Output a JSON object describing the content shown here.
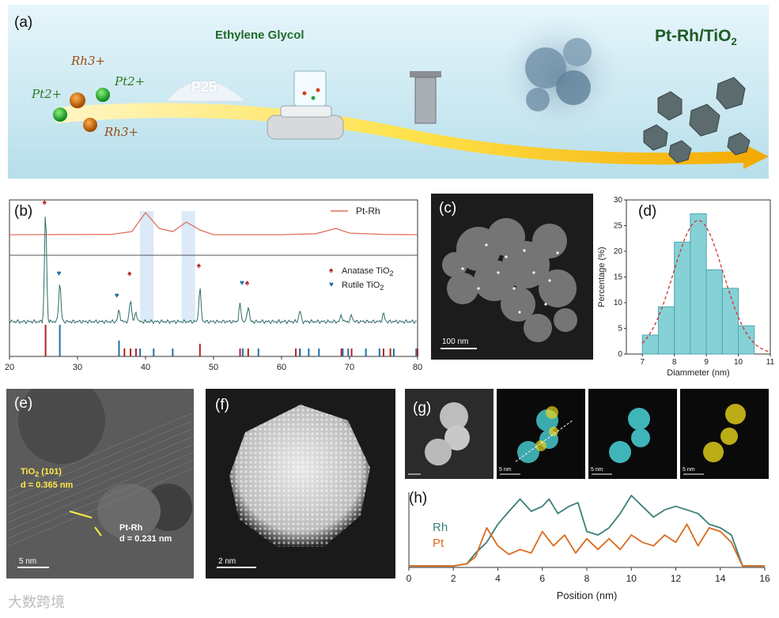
{
  "figure": {
    "panel_a": {
      "label": "(a)",
      "ions": [
        "Pt2+",
        "Pt2+",
        "Rh3+",
        "Rh3+"
      ],
      "support_label": "P25",
      "solvent_label": "Ethylene Glycol",
      "product_label_main": "Pt-Rh/TiO",
      "product_label_sub": "2",
      "colors": {
        "sky_top": "#dff3fb",
        "sky_bottom": "#bfe4ef",
        "arrow": "#f7c600",
        "title_green": "#1f6b2a"
      }
    },
    "panel_b": {
      "label": "(b)",
      "legend_line": "Pt-Rh",
      "legend_anatase": "Anatase TiO",
      "legend_rutile": "Rutile TiO",
      "legend_sub": "2",
      "x_ticks": [
        "20",
        "30",
        "40",
        "50",
        "60",
        "70",
        "80"
      ],
      "colors": {
        "top_curve": "#e0705a",
        "main_curve": "#2e6b66",
        "anatase": "#b22222",
        "rutile": "#1f6fa8",
        "shade": "#dbe9f8"
      }
    },
    "panel_c": {
      "label": "(c)",
      "scalebar": "100  nm"
    },
    "panel_d": {
      "label": "(d)",
      "xlabel": "Diammeter (nm)",
      "ylabel": "Percentage (%)",
      "x_ticks": [
        "7",
        "8",
        "9",
        "10",
        "11"
      ],
      "y_ticks": [
        "0",
        "5",
        "10",
        "15",
        "20",
        "25",
        "30"
      ]
    },
    "panel_e": {
      "label": "(e)",
      "ann_tio2_line1": "TiO",
      "ann_tio2_sub": "2",
      "ann_tio2_line1_rest": " (101)",
      "ann_tio2_line2": "d = 0.365 nm",
      "ann_ptrh_line1": "Pt-Rh",
      "ann_ptrh_line2": "d = 0.231 nm",
      "scalebar": "5  nm"
    },
    "panel_f": {
      "label": "(f)",
      "scalebar": "2  nm"
    },
    "panel_g": {
      "label": "(g)",
      "scalebar": "5 nm"
    },
    "panel_h": {
      "label": "(h)",
      "xlabel": "Position (nm)",
      "x_ticks": [
        "0",
        "2",
        "4",
        "6",
        "8",
        "10",
        "12",
        "14",
        "16"
      ],
      "legend_rh": "Rh",
      "legend_pt": "Pt",
      "colors": {
        "rh": "#3a7f78",
        "pt": "#d96b1c"
      }
    },
    "watermark": "大数跨境"
  },
  "chart_data": [
    {
      "type": "line",
      "panel": "b",
      "xlabel": "",
      "ylabel": "",
      "xlim": [
        20,
        80
      ],
      "x_ticks": [
        20,
        30,
        40,
        50,
        60,
        70,
        80
      ],
      "series": [
        {
          "name": "Pt-Rh",
          "x": [
            20,
            35,
            38,
            40,
            42,
            44,
            46,
            48,
            50,
            60,
            65,
            68,
            70,
            75,
            80
          ],
          "y": [
            0.05,
            0.06,
            0.15,
            0.75,
            0.25,
            0.15,
            0.45,
            0.2,
            0.05,
            0.05,
            0.08,
            0.25,
            0.1,
            0.06,
            0.05
          ]
        },
        {
          "name": "Anatase TiO2",
          "reference_peaks": [
            25.3,
            36.9,
            37.8,
            38.6,
            48.0,
            53.9,
            55.1,
            62.1,
            62.7,
            68.8,
            70.3,
            75.0,
            76.0,
            80.0
          ]
        },
        {
          "name": "Rutile TiO2",
          "reference_peaks": [
            27.4,
            36.1,
            39.2,
            41.2,
            44.0,
            54.3,
            56.6,
            62.7,
            64.0,
            65.5,
            69.0,
            69.8,
            72.4,
            74.4,
            76.5,
            79.8
          ]
        }
      ]
    },
    {
      "type": "bar",
      "panel": "d",
      "xlabel": "Diammeter (nm)",
      "ylabel": "Percentage (%)",
      "xlim": [
        6.5,
        11
      ],
      "ylim": [
        0,
        30
      ],
      "categories": [
        7.25,
        7.75,
        8.25,
        8.75,
        9.25,
        9.75,
        10.25
      ],
      "values": [
        3.7,
        9.2,
        21.8,
        27.3,
        16.4,
        12.8,
        5.5
      ],
      "fit": "gaussian"
    },
    {
      "type": "line",
      "panel": "h",
      "xlabel": "Position (nm)",
      "ylabel": "",
      "xlim": [
        0,
        16
      ],
      "x_ticks": [
        0,
        2,
        4,
        6,
        8,
        10,
        12,
        14,
        16
      ],
      "series": [
        {
          "name": "Rh",
          "x": [
            0,
            2,
            2.6,
            3.0,
            3.5,
            4.0,
            4.5,
            5.0,
            5.5,
            6.0,
            6.3,
            6.7,
            7.2,
            7.6,
            8.0,
            8.5,
            9.0,
            9.5,
            10.0,
            10.5,
            11.0,
            11.5,
            12.0,
            12.5,
            13.0,
            13.5,
            14.0,
            14.5,
            15.0,
            16.0
          ],
          "y": [
            0.02,
            0.02,
            0.05,
            0.2,
            0.35,
            0.6,
            0.78,
            0.95,
            0.78,
            0.85,
            0.95,
            0.75,
            0.85,
            0.9,
            0.5,
            0.45,
            0.55,
            0.75,
            1.0,
            0.85,
            0.7,
            0.8,
            0.85,
            0.8,
            0.75,
            0.6,
            0.55,
            0.45,
            0.02,
            0.02
          ]
        },
        {
          "name": "Pt",
          "x": [
            0,
            2,
            2.6,
            3.0,
            3.5,
            4.0,
            4.5,
            5.0,
            5.5,
            6.0,
            6.5,
            7.0,
            7.5,
            8.0,
            8.5,
            9.0,
            9.5,
            10.0,
            10.5,
            11.0,
            11.5,
            12.0,
            12.5,
            13.0,
            13.5,
            14.0,
            14.5,
            15.0,
            16.0
          ],
          "y": [
            0.02,
            0.02,
            0.05,
            0.15,
            0.55,
            0.3,
            0.18,
            0.25,
            0.2,
            0.5,
            0.3,
            0.45,
            0.2,
            0.4,
            0.25,
            0.4,
            0.25,
            0.45,
            0.35,
            0.3,
            0.45,
            0.35,
            0.6,
            0.3,
            0.55,
            0.5,
            0.35,
            0.02,
            0.02
          ]
        }
      ]
    }
  ]
}
